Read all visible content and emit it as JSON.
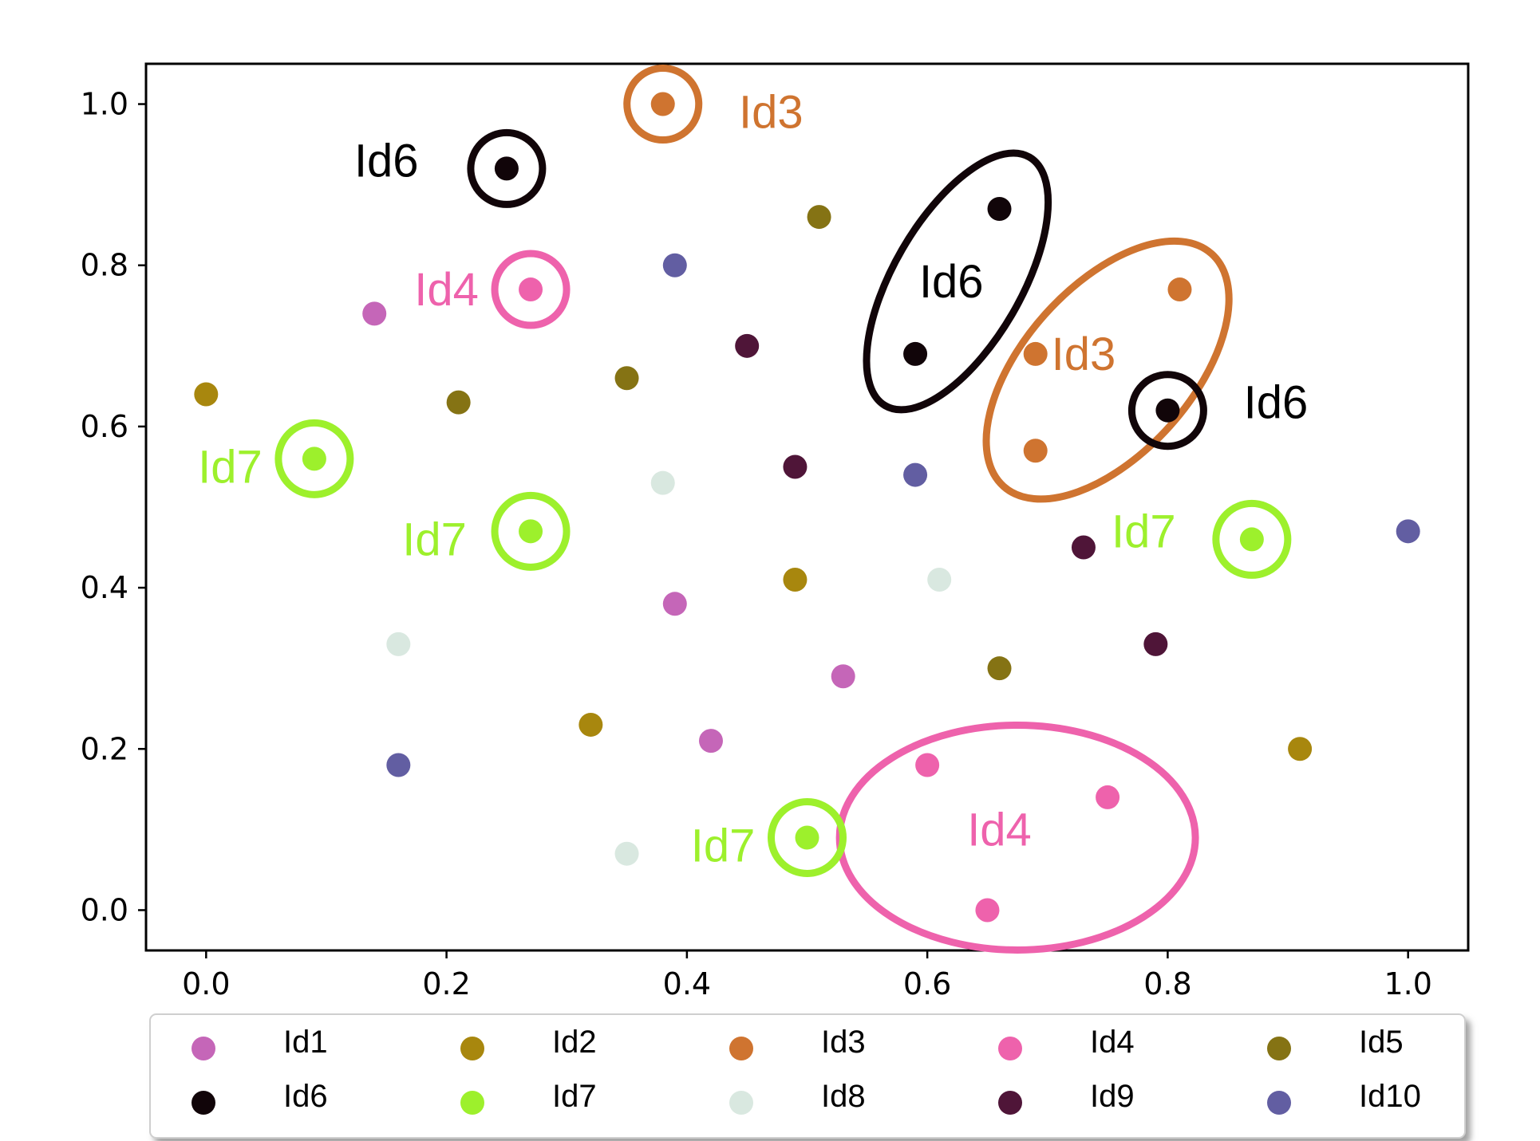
{
  "chart_data": {
    "type": "scatter",
    "title": "",
    "xlabel": "",
    "ylabel": "",
    "xlim": [
      -0.05,
      1.05
    ],
    "ylim": [
      -0.05,
      1.05
    ],
    "xticks": [
      "0.0",
      "0.2",
      "0.4",
      "0.6",
      "0.8",
      "1.0"
    ],
    "yticks": [
      "0.0",
      "0.2",
      "0.4",
      "0.6",
      "0.8",
      "1.0"
    ],
    "grid": false,
    "legend_location": "below",
    "series": [
      {
        "name": "Id1",
        "color": "#c566b8",
        "points": [
          [
            0.14,
            0.74
          ],
          [
            0.39,
            0.38
          ],
          [
            0.53,
            0.29
          ],
          [
            0.42,
            0.21
          ]
        ]
      },
      {
        "name": "Id2",
        "color": "#a8870e",
        "points": [
          [
            0.0,
            0.64
          ],
          [
            0.32,
            0.23
          ],
          [
            0.49,
            0.41
          ],
          [
            0.91,
            0.2
          ]
        ]
      },
      {
        "name": "Id3",
        "color": "#cf7430",
        "points": [
          [
            0.38,
            1.0
          ],
          [
            0.81,
            0.77
          ],
          [
            0.69,
            0.69
          ],
          [
            0.69,
            0.57
          ]
        ]
      },
      {
        "name": "Id4",
        "color": "#ee62ac",
        "points": [
          [
            0.27,
            0.77
          ],
          [
            0.6,
            0.18
          ],
          [
            0.75,
            0.14
          ],
          [
            0.65,
            0.0
          ]
        ]
      },
      {
        "name": "Id5",
        "color": "#857314",
        "points": [
          [
            0.51,
            0.86
          ],
          [
            0.21,
            0.63
          ],
          [
            0.35,
            0.66
          ],
          [
            0.66,
            0.3
          ]
        ]
      },
      {
        "name": "Id6",
        "color": "#110509",
        "points": [
          [
            0.25,
            0.92
          ],
          [
            0.66,
            0.87
          ],
          [
            0.59,
            0.69
          ],
          [
            0.8,
            0.62
          ]
        ]
      },
      {
        "name": "Id7",
        "color": "#9df02c",
        "points": [
          [
            0.09,
            0.56
          ],
          [
            0.27,
            0.47
          ],
          [
            0.87,
            0.46
          ],
          [
            0.5,
            0.09
          ]
        ]
      },
      {
        "name": "Id8",
        "color": "#d9e8e0",
        "points": [
          [
            0.38,
            0.53
          ],
          [
            0.61,
            0.41
          ],
          [
            0.16,
            0.33
          ],
          [
            0.35,
            0.07
          ]
        ]
      },
      {
        "name": "Id9",
        "color": "#4f1538",
        "points": [
          [
            0.45,
            0.7
          ],
          [
            0.49,
            0.55
          ],
          [
            0.73,
            0.45
          ],
          [
            0.79,
            0.33
          ]
        ]
      },
      {
        "name": "Id10",
        "color": "#625ea2",
        "points": [
          [
            0.39,
            0.8
          ],
          [
            0.59,
            0.54
          ],
          [
            1.0,
            0.47
          ],
          [
            0.16,
            0.18
          ]
        ]
      }
    ],
    "annotations": [
      {
        "text": "Id3",
        "color": "#cf7430",
        "x": 0.47,
        "y": 0.99
      },
      {
        "text": "Id6",
        "color": "#000000",
        "x": 0.15,
        "y": 0.93
      },
      {
        "text": "Id4",
        "color": "#ee62ac",
        "x": 0.2,
        "y": 0.77
      },
      {
        "text": "Id6",
        "color": "#000000",
        "x": 0.62,
        "y": 0.78
      },
      {
        "text": "Id3",
        "color": "#cf7430",
        "x": 0.73,
        "y": 0.69
      },
      {
        "text": "Id6",
        "color": "#000000",
        "x": 0.89,
        "y": 0.63
      },
      {
        "text": "Id7",
        "color": "#9df02c",
        "x": 0.02,
        "y": 0.55
      },
      {
        "text": "Id7",
        "color": "#9df02c",
        "x": 0.19,
        "y": 0.46
      },
      {
        "text": "Id7",
        "color": "#9df02c",
        "x": 0.78,
        "y": 0.47
      },
      {
        "text": "Id4",
        "color": "#ee62ac",
        "x": 0.66,
        "y": 0.1
      },
      {
        "text": "Id7",
        "color": "#9df02c",
        "x": 0.43,
        "y": 0.08
      }
    ],
    "highlight_groups": [
      {
        "label": "Id3",
        "color": "#cf7430",
        "members": [
          [
            0.38,
            1.0
          ]
        ]
      },
      {
        "label": "Id6",
        "color": "#110509",
        "members": [
          [
            0.25,
            0.92
          ]
        ]
      },
      {
        "label": "Id4",
        "color": "#ee62ac",
        "members": [
          [
            0.27,
            0.77
          ]
        ]
      },
      {
        "label": "Id6",
        "color": "#110509",
        "members": [
          [
            0.66,
            0.87
          ],
          [
            0.59,
            0.69
          ]
        ]
      },
      {
        "label": "Id3",
        "color": "#cf7430",
        "members": [
          [
            0.81,
            0.77
          ],
          [
            0.69,
            0.69
          ],
          [
            0.69,
            0.57
          ]
        ]
      },
      {
        "label": "Id6",
        "color": "#110509",
        "members": [
          [
            0.8,
            0.62
          ]
        ]
      },
      {
        "label": "Id7",
        "color": "#9df02c",
        "members": [
          [
            0.09,
            0.56
          ]
        ]
      },
      {
        "label": "Id7",
        "color": "#9df02c",
        "members": [
          [
            0.27,
            0.47
          ]
        ]
      },
      {
        "label": "Id7",
        "color": "#9df02c",
        "members": [
          [
            0.87,
            0.46
          ]
        ]
      },
      {
        "label": "Id4",
        "color": "#ee62ac",
        "members": [
          [
            0.6,
            0.18
          ],
          [
            0.75,
            0.14
          ],
          [
            0.65,
            0.0
          ]
        ]
      },
      {
        "label": "Id7",
        "color": "#9df02c",
        "members": [
          [
            0.5,
            0.09
          ]
        ]
      }
    ]
  }
}
